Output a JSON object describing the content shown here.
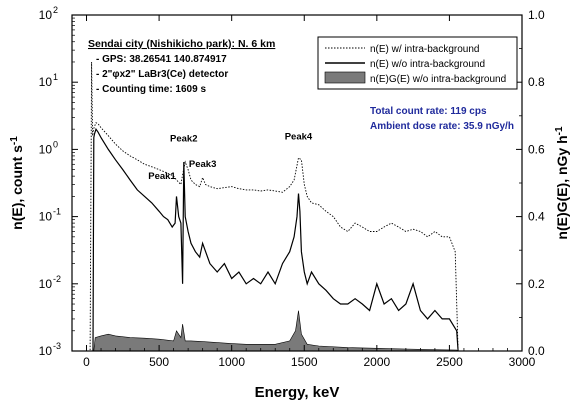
{
  "chart_data": {
    "type": "line",
    "xlabel": "Energy, keV",
    "ylabel_left": "n(E), count s",
    "ylabel_left_sup": "-1",
    "ylabel_right": "n(E)G(E), nGy h",
    "ylabel_right_sup": "-1",
    "xlim": [
      -100,
      3000
    ],
    "ylim_left": [
      0.001,
      100
    ],
    "ylim_left_scale": "log",
    "ylim_right": [
      0,
      1.0
    ],
    "x_ticks": [
      0,
      500,
      1000,
      1500,
      2000,
      2500,
      3000
    ],
    "y_left_ticks": [
      {
        "value": 0.001,
        "mantissa": "10",
        "exp": "-3"
      },
      {
        "value": 0.01,
        "mantissa": "10",
        "exp": "-2"
      },
      {
        "value": 0.1,
        "mantissa": "10",
        "exp": "-1"
      },
      {
        "value": 1,
        "mantissa": "10",
        "exp": "0"
      },
      {
        "value": 10,
        "mantissa": "10",
        "exp": "1"
      },
      {
        "value": 100,
        "mantissa": "10",
        "exp": "2"
      }
    ],
    "y_right_ticks": [
      "0.0",
      "0.2",
      "0.4",
      "0.6",
      "0.8",
      "1.0"
    ],
    "grid": false,
    "info_title": "Sendai city (Nishikicho park): N. 6 km",
    "info_lines": [
      "- GPS: 38.26541 140.874917",
      "- 2\"φx2\" LaBr3(Ce) detector",
      "- Counting time: 1609 s"
    ],
    "summary_lines": [
      "Total count rate: 119 cps",
      "Ambient dose rate: 35.9 nGy/h"
    ],
    "legend_position": "top-right",
    "series": [
      {
        "name": "n(E) w/ intra-background",
        "style": "dotted",
        "x": [
          10,
          25,
          35,
          42,
          48,
          55,
          65,
          80,
          100,
          150,
          200,
          250,
          300,
          350,
          400,
          450,
          500,
          550,
          600,
          620,
          650,
          665,
          680,
          700,
          720,
          750,
          780,
          800,
          820,
          850,
          900,
          950,
          1000,
          1050,
          1100,
          1150,
          1200,
          1250,
          1300,
          1350,
          1400,
          1430,
          1460,
          1480,
          1500,
          1520,
          1550,
          1600,
          1650,
          1700,
          1750,
          1800,
          1850,
          1900,
          1950,
          2000,
          2050,
          2100,
          2150,
          2200,
          2250,
          2300,
          2350,
          2400,
          2450,
          2500,
          2540,
          2560
        ],
        "y": [
          0.001,
          0.001,
          20,
          1.6,
          2.0,
          2.2,
          2.5,
          2.4,
          2.1,
          1.6,
          1.2,
          0.95,
          0.8,
          0.7,
          0.6,
          0.55,
          0.5,
          0.45,
          0.4,
          0.35,
          0.3,
          0.45,
          0.65,
          0.5,
          0.35,
          0.3,
          0.28,
          0.38,
          0.3,
          0.28,
          0.26,
          0.27,
          0.28,
          0.26,
          0.25,
          0.25,
          0.24,
          0.25,
          0.24,
          0.23,
          0.28,
          0.35,
          0.75,
          0.7,
          0.3,
          0.2,
          0.16,
          0.15,
          0.12,
          0.1,
          0.07,
          0.06,
          0.08,
          0.07,
          0.06,
          0.06,
          0.07,
          0.08,
          0.07,
          0.06,
          0.065,
          0.06,
          0.05,
          0.06,
          0.05,
          0.05,
          0.03,
          0.001
        ]
      },
      {
        "name": "n(E) w/o intra-background",
        "style": "solid",
        "x": [
          45,
          50,
          55,
          65,
          80,
          100,
          150,
          200,
          250,
          300,
          350,
          400,
          450,
          500,
          530,
          560,
          590,
          610,
          620,
          635,
          650,
          662,
          670,
          680,
          700,
          720,
          750,
          780,
          800,
          850,
          900,
          950,
          1000,
          1050,
          1100,
          1150,
          1200,
          1250,
          1300,
          1350,
          1400,
          1430,
          1450,
          1460,
          1470,
          1480,
          1500,
          1520,
          1550,
          1600,
          1650,
          1700,
          1750,
          1800,
          1850,
          1900,
          1950,
          2000,
          2050,
          2100,
          2150,
          2200,
          2250,
          2300,
          2350,
          2400,
          2450,
          2500,
          2550,
          2560
        ],
        "y": [
          0.001,
          1.5,
          1.7,
          2.0,
          1.8,
          1.5,
          1.0,
          0.7,
          0.5,
          0.35,
          0.25,
          0.2,
          0.16,
          0.12,
          0.1,
          0.09,
          0.07,
          0.08,
          0.2,
          0.1,
          0.08,
          0.01,
          0.65,
          0.1,
          0.06,
          0.04,
          0.03,
          0.025,
          0.04,
          0.02,
          0.015,
          0.02,
          0.012,
          0.015,
          0.01,
          0.012,
          0.01,
          0.015,
          0.01,
          0.02,
          0.03,
          0.05,
          0.1,
          0.22,
          0.12,
          0.03,
          0.015,
          0.01,
          0.015,
          0.01,
          0.008,
          0.006,
          0.005,
          0.005,
          0.006,
          0.005,
          0.004,
          0.01,
          0.005,
          0.006,
          0.004,
          0.005,
          0.01,
          0.004,
          0.003,
          0.004,
          0.003,
          0.003,
          0.002,
          0.001
        ]
      },
      {
        "name": "n(E)G(E) w/o intra-background",
        "style": "area",
        "axis": "right",
        "x": [
          50,
          60,
          100,
          150,
          200,
          300,
          400,
          500,
          600,
          620,
          650,
          662,
          680,
          720,
          800,
          900,
          1000,
          1100,
          1200,
          1300,
          1400,
          1440,
          1460,
          1480,
          1520,
          1600,
          1800,
          2000,
          2200,
          2400,
          2550,
          2560
        ],
        "y": [
          0.0,
          0.04,
          0.045,
          0.05,
          0.045,
          0.04,
          0.038,
          0.035,
          0.03,
          0.06,
          0.04,
          0.08,
          0.03,
          0.03,
          0.028,
          0.025,
          0.022,
          0.02,
          0.02,
          0.02,
          0.03,
          0.06,
          0.12,
          0.05,
          0.02,
          0.015,
          0.01,
          0.008,
          0.006,
          0.004,
          0.003,
          0.0
        ]
      }
    ],
    "annotations": [
      {
        "text": "Peak1",
        "x": 520,
        "y": 0.36
      },
      {
        "text": "Peak2",
        "x": 670,
        "y": 1.3
      },
      {
        "text": "Peak3",
        "x": 800,
        "y": 0.55
      },
      {
        "text": "Peak4",
        "x": 1460,
        "y": 1.4
      }
    ]
  }
}
